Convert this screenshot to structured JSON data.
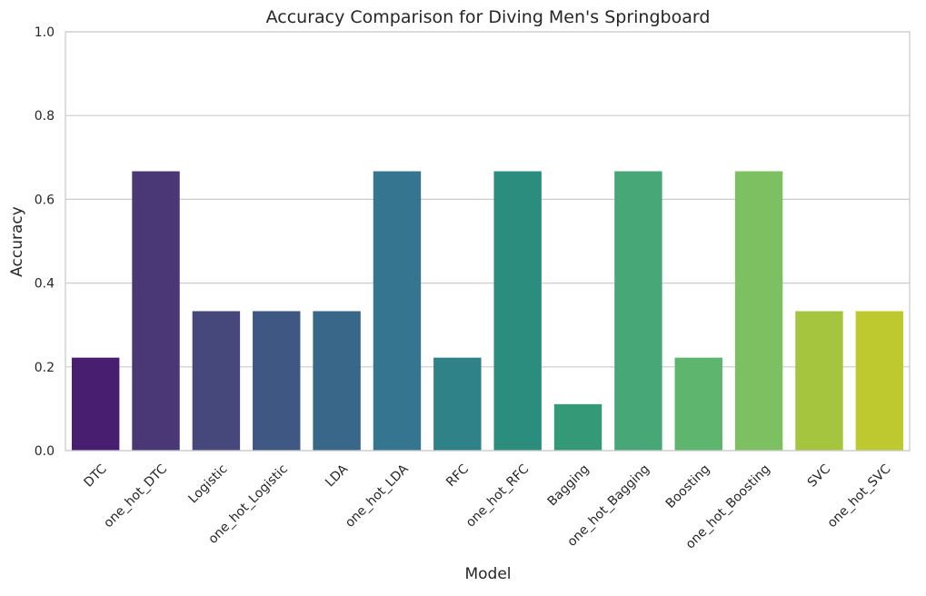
{
  "chart_data": {
    "type": "bar",
    "title": "Accuracy Comparison for Diving Men's Springboard",
    "xlabel": "Model",
    "ylabel": "Accuracy",
    "ylim": [
      0,
      1.0
    ],
    "yticks": [
      "0.0",
      "0.2",
      "0.4",
      "0.6",
      "0.8",
      "1.0"
    ],
    "grid": true,
    "categories": [
      "DTC",
      "one_hot_DTC",
      "Logistic",
      "one_hot_Logistic",
      "LDA",
      "one_hot_LDA",
      "RFC",
      "one_hot_RFC",
      "Bagging",
      "one_hot_Bagging",
      "Boosting",
      "one_hot_Boosting",
      "SVC",
      "one_hot_SVC"
    ],
    "values": [
      0.222,
      0.667,
      0.333,
      0.333,
      0.333,
      0.667,
      0.222,
      0.667,
      0.111,
      0.667,
      0.222,
      0.667,
      0.333,
      0.333
    ],
    "colors": [
      "#481f70",
      "#4a3776",
      "#46487c",
      "#3f5883",
      "#39678a",
      "#357590",
      "#2f8287",
      "#2b8d7e",
      "#339977",
      "#47a777",
      "#5db56e",
      "#7dc062",
      "#a5c53e",
      "#bec930"
    ]
  }
}
